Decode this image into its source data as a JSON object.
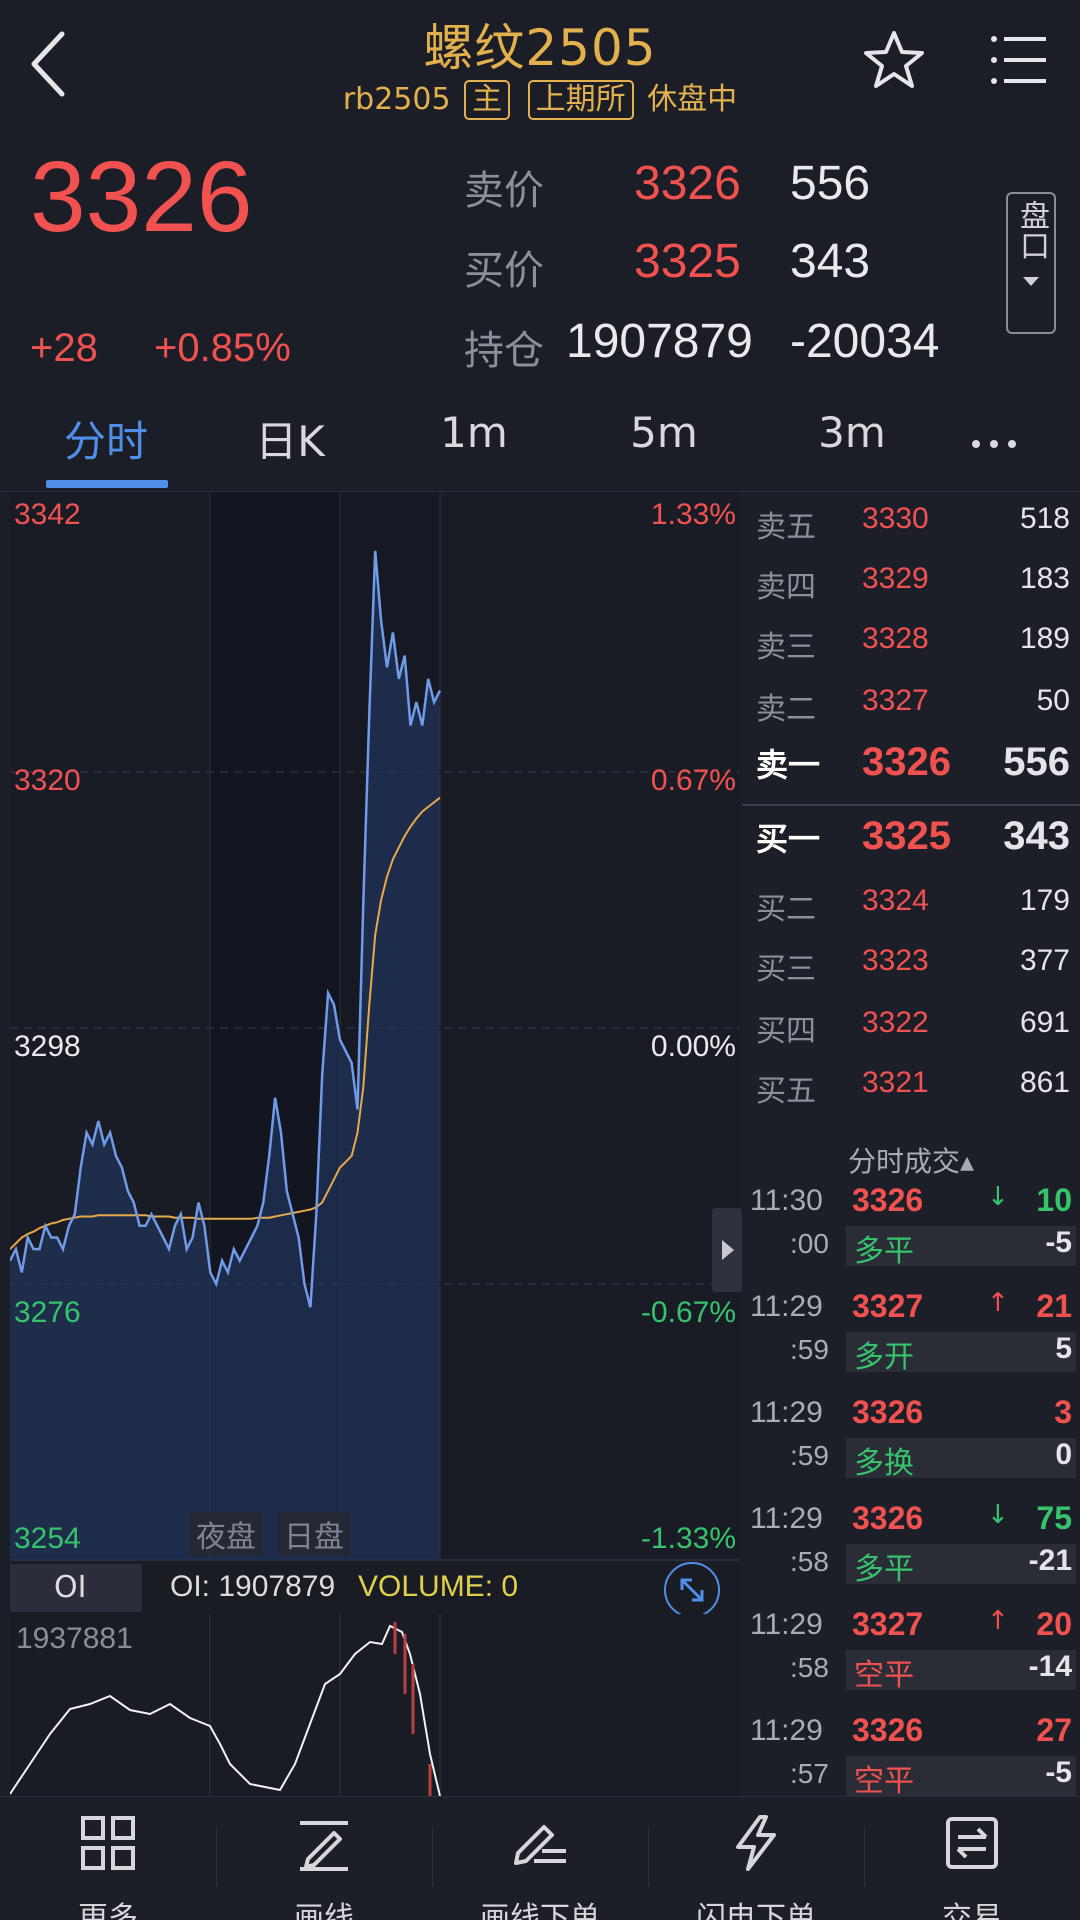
{
  "header": {
    "title": "螺纹2505",
    "contract": "rb2505",
    "tag_main": "主",
    "exchange": "上期所",
    "status": "休盘中"
  },
  "quote": {
    "last_price": "3326",
    "change": "+28",
    "change_pct": "+0.85%",
    "ask_label": "卖价",
    "ask_price": "3326",
    "ask_vol": "556",
    "bid_label": "买价",
    "bid_price": "3325",
    "bid_vol": "343",
    "oi_label": "持仓",
    "oi": "1907879",
    "oi_change": "-20034",
    "pankou_label": "盘口"
  },
  "tabs": [
    "分时",
    "日K",
    "1m",
    "5m",
    "3m"
  ],
  "chart": {
    "price_labels": [
      "3342",
      "3320",
      "3298",
      "3276",
      "3254"
    ],
    "pct_labels": [
      "1.33%",
      "0.67%",
      "0.00%",
      "-0.67%",
      "-1.33%"
    ],
    "session_labels": [
      "夜盘",
      "日盘"
    ],
    "colors": {
      "price_line": "#6f9be8",
      "avg_line": "#e6a94a",
      "up": "#f2524f",
      "down": "#35c46b"
    }
  },
  "chart_data": {
    "type": "line",
    "ylim": [
      3254,
      3342
    ],
    "series": [
      {
        "values": [
          3278,
          3279,
          3277,
          3280,
          3279,
          3279,
          3281,
          3280,
          3280,
          3279,
          3281,
          3282,
          3286,
          3289,
          3288,
          3290,
          3288,
          3289,
          3287,
          3286,
          3284,
          3283,
          3281,
          3281,
          3282,
          3281,
          3280,
          3279,
          3281,
          3282,
          3279,
          3280,
          3283,
          3281,
          3277,
          3276,
          3278,
          3277,
          3279,
          3278,
          3279,
          3280,
          3281,
          3283,
          3287,
          3292,
          3289,
          3284,
          3282,
          3280,
          3276,
          3274,
          3282,
          3294,
          3301,
          3300,
          3297,
          3296,
          3295,
          3291,
          3309,
          3325,
          3339,
          3333,
          3329,
          3332,
          3328,
          3330,
          3324,
          3326,
          3324,
          3328,
          3326,
          3327
        ]
      },
      {
        "values": [
          3279,
          3279.5,
          3280,
          3280.3,
          3280.5,
          3280.8,
          3281,
          3281.2,
          3281.3,
          3281.5,
          3281.6,
          3281.7,
          3281.8,
          3281.8,
          3281.8,
          3281.9,
          3281.9,
          3281.9,
          3281.9,
          3281.9,
          3281.9,
          3281.9,
          3281.9,
          3281.9,
          3281.8,
          3281.8,
          3281.8,
          3281.8,
          3281.7,
          3281.7,
          3281.7,
          3281.7,
          3281.6,
          3281.6,
          3281.6,
          3281.6,
          3281.6,
          3281.6,
          3281.6,
          3281.6,
          3281.6,
          3281.6,
          3281.7,
          3281.7,
          3281.7,
          3281.8,
          3281.9,
          3282,
          3282.1,
          3282.2,
          3282.3,
          3282.4,
          3282.6,
          3283,
          3284,
          3285,
          3286,
          3286.5,
          3287,
          3289,
          3293,
          3300,
          3306,
          3309,
          3311,
          3312.5,
          3313.5,
          3314.5,
          3315.3,
          3316,
          3316.6,
          3317,
          3317.4,
          3317.8
        ]
      }
    ]
  },
  "oi_panel": {
    "selector": "OI",
    "oi_text": "OI: 1907879",
    "volume_text": "VOLUME: 0",
    "max_label": "1937881"
  },
  "order_book": {
    "asks": [
      {
        "label": "卖五",
        "price": "3330",
        "vol": "518"
      },
      {
        "label": "卖四",
        "price": "3329",
        "vol": "183"
      },
      {
        "label": "卖三",
        "price": "3328",
        "vol": "189"
      },
      {
        "label": "卖二",
        "price": "3327",
        "vol": "50"
      },
      {
        "label": "卖一",
        "price": "3326",
        "vol": "556"
      }
    ],
    "bids": [
      {
        "label": "买一",
        "price": "3325",
        "vol": "343"
      },
      {
        "label": "买二",
        "price": "3324",
        "vol": "179"
      },
      {
        "label": "买三",
        "price": "3323",
        "vol": "377"
      },
      {
        "label": "买四",
        "price": "3322",
        "vol": "691"
      },
      {
        "label": "买五",
        "price": "3321",
        "vol": "861"
      }
    ]
  },
  "ticks": {
    "title": "分时成交▴",
    "rows": [
      {
        "time": "11:30",
        "sec": ":00",
        "price": "3326",
        "arrow": "↓",
        "vol": "10",
        "type": "多平",
        "oi": "-5",
        "dir": "down"
      },
      {
        "time": "11:29",
        "sec": ":59",
        "price": "3327",
        "arrow": "↑",
        "vol": "21",
        "type": "多开",
        "oi": "5",
        "dir": "up"
      },
      {
        "time": "11:29",
        "sec": ":59",
        "price": "3326",
        "arrow": "",
        "vol": "3",
        "type": "多换",
        "oi": "0",
        "dir": "up"
      },
      {
        "time": "11:29",
        "sec": ":58",
        "price": "3326",
        "arrow": "↓",
        "vol": "75",
        "type": "多平",
        "oi": "-21",
        "dir": "down"
      },
      {
        "time": "11:29",
        "sec": ":58",
        "price": "3327",
        "arrow": "↑",
        "vol": "20",
        "type": "空平",
        "oi": "-14",
        "dir": "up"
      },
      {
        "time": "11:29",
        "sec": ":57",
        "price": "3326",
        "arrow": "",
        "vol": "27",
        "type": "空平",
        "oi": "-5",
        "dir": "up"
      }
    ]
  },
  "nav": [
    "更多",
    "画线",
    "画线下单",
    "闪电下单",
    "交易"
  ]
}
